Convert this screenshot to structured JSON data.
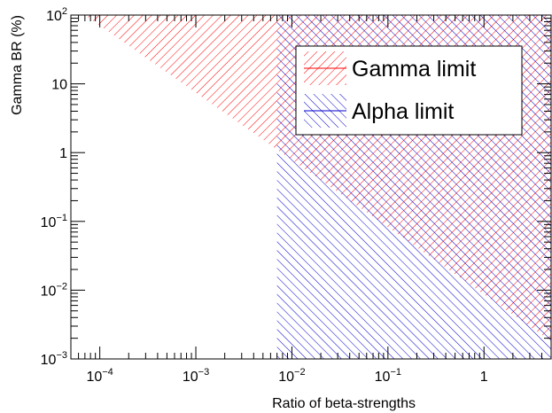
{
  "chart_data": {
    "type": "area",
    "title": "",
    "xlabel": "Ratio of beta-strengths",
    "ylabel": "Gamma BR (%)",
    "x_scale": "log",
    "y_scale": "log",
    "xlim": [
      5e-05,
      5
    ],
    "ylim": [
      0.001,
      100
    ],
    "x_ticks": [
      {
        "value": 0.0001,
        "label": "10",
        "exp": "−4"
      },
      {
        "value": 0.001,
        "label": "10",
        "exp": "−3"
      },
      {
        "value": 0.01,
        "label": "10",
        "exp": "−2"
      },
      {
        "value": 0.1,
        "label": "10",
        "exp": "−1"
      },
      {
        "value": 1,
        "label": "1",
        "exp": ""
      }
    ],
    "y_ticks": [
      {
        "value": 0.001,
        "label": "10",
        "exp": "−3"
      },
      {
        "value": 0.01,
        "label": "10",
        "exp": "−2"
      },
      {
        "value": 0.1,
        "label": "10",
        "exp": "−1"
      },
      {
        "value": 1,
        "label": "1",
        "exp": ""
      },
      {
        "value": 10,
        "label": "10",
        "exp": ""
      },
      {
        "value": 100,
        "label": "10",
        "exp": "2"
      }
    ],
    "grid": false,
    "legend_position": "top-right",
    "series": [
      {
        "name": "Gamma limit",
        "color": "#ff0000",
        "hatch": "diagonal",
        "boundary": [
          [
            7e-05,
            100
          ],
          [
            5,
            0.0018
          ]
        ],
        "region": "above"
      },
      {
        "name": "Alpha limit",
        "color": "#0000cc",
        "hatch": "diagonal-reverse",
        "boundary_x": 0.007,
        "region": "right"
      }
    ]
  }
}
